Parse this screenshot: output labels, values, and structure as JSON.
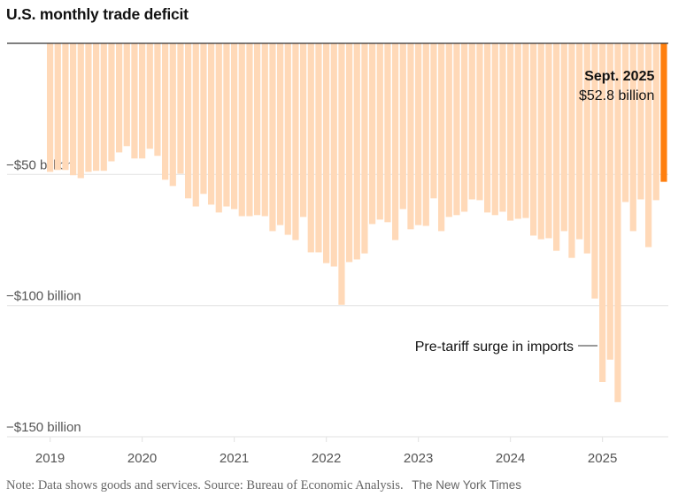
{
  "title": "U.S. monthly trade deficit",
  "footer": {
    "note": "Note: Data shows goods and services.",
    "source": "Source: Bureau of Economic Analysis.",
    "credit": "The New York Times"
  },
  "colors": {
    "bar": "#ffd9b8",
    "highlight": "#ff7f0e",
    "baseline": "#333333",
    "grid": "#e6e6e6"
  },
  "chart_data": {
    "type": "bar",
    "title": "U.S. monthly trade deficit",
    "xlabel": "",
    "ylabel": "",
    "ylim": [
      -150,
      0
    ],
    "grid": true,
    "y_ticks": [
      {
        "value": -50,
        "label": "−$50 billion"
      },
      {
        "value": -100,
        "label": "−$100 billion"
      },
      {
        "value": -150,
        "label": "−$150 billion"
      }
    ],
    "x_ticks": [
      {
        "index": 0,
        "label": "2019"
      },
      {
        "index": 12,
        "label": "2020"
      },
      {
        "index": 24,
        "label": "2021"
      },
      {
        "index": 36,
        "label": "2022"
      },
      {
        "index": 48,
        "label": "2023"
      },
      {
        "index": 60,
        "label": "2024"
      },
      {
        "index": 72,
        "label": "2025"
      }
    ],
    "start": "2019-01",
    "end": "2025-09",
    "frequency": "monthly",
    "unit": "billion USD",
    "values": [
      -49.0,
      -48.3,
      -48.3,
      -50.3,
      -51.4,
      -49.0,
      -48.6,
      -48.6,
      -45.0,
      -41.6,
      -39.2,
      -43.9,
      -43.9,
      -40.2,
      -42.9,
      -52.0,
      -54.4,
      -49.7,
      -59.1,
      -62.2,
      -57.4,
      -61.5,
      -64.5,
      -62.2,
      -63.2,
      -65.9,
      -65.9,
      -65.5,
      -65.9,
      -71.6,
      -69.3,
      -73.0,
      -75.0,
      -66.2,
      -79.7,
      -79.7,
      -83.8,
      -85.1,
      -99.7,
      -83.4,
      -82.4,
      -80.1,
      -68.9,
      -67.2,
      -68.2,
      -75.0,
      -63.2,
      -70.9,
      -69.3,
      -69.6,
      -59.1,
      -71.6,
      -66.2,
      -65.5,
      -64.2,
      -59.5,
      -59.8,
      -64.5,
      -65.5,
      -64.2,
      -67.6,
      -66.9,
      -66.6,
      -73.3,
      -74.7,
      -74.3,
      -79.1,
      -71.6,
      -81.8,
      -74.7,
      -80.1,
      -97.3,
      -129.1,
      -120.6,
      -136.8,
      -60.5,
      -71.6,
      -59.5,
      -77.7,
      -59.8,
      -52.8
    ],
    "highlight_index": 80,
    "annotations": [
      {
        "target": "highlight",
        "title": "Sept. 2025",
        "text": "$52.8 billion"
      },
      {
        "target_index": 72,
        "text": "Pre-tariff surge in imports"
      }
    ]
  }
}
